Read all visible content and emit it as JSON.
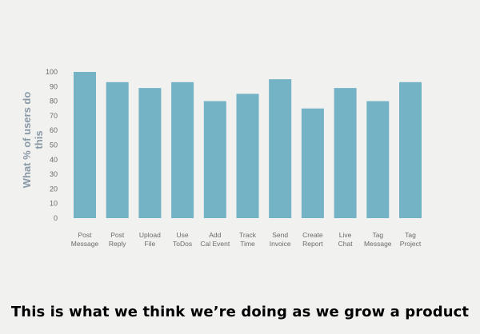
{
  "chart_data": {
    "type": "bar",
    "categories": [
      [
        "Post",
        "Message"
      ],
      [
        "Post",
        "Reply"
      ],
      [
        "Upload",
        "File"
      ],
      [
        "Use",
        "ToDos"
      ],
      [
        "Add",
        "Cal Event"
      ],
      [
        "Track",
        "Time"
      ],
      [
        "Send",
        "Invoice"
      ],
      [
        "Create",
        "Report"
      ],
      [
        "Live",
        "Chat"
      ],
      [
        "Tag",
        "Message"
      ],
      [
        "Tag",
        "Project"
      ]
    ],
    "values": [
      100,
      93,
      89,
      93,
      80,
      85,
      95,
      75,
      89,
      80,
      93
    ],
    "ylabel": [
      "What % of users do",
      "this"
    ],
    "ylim": [
      0,
      100
    ],
    "yticks": [
      0,
      10,
      20,
      30,
      40,
      50,
      60,
      70,
      80,
      90,
      100
    ],
    "bar_color": "#74b2c6",
    "grid": false
  },
  "caption": "This is what we think we’re doing as we grow a product"
}
